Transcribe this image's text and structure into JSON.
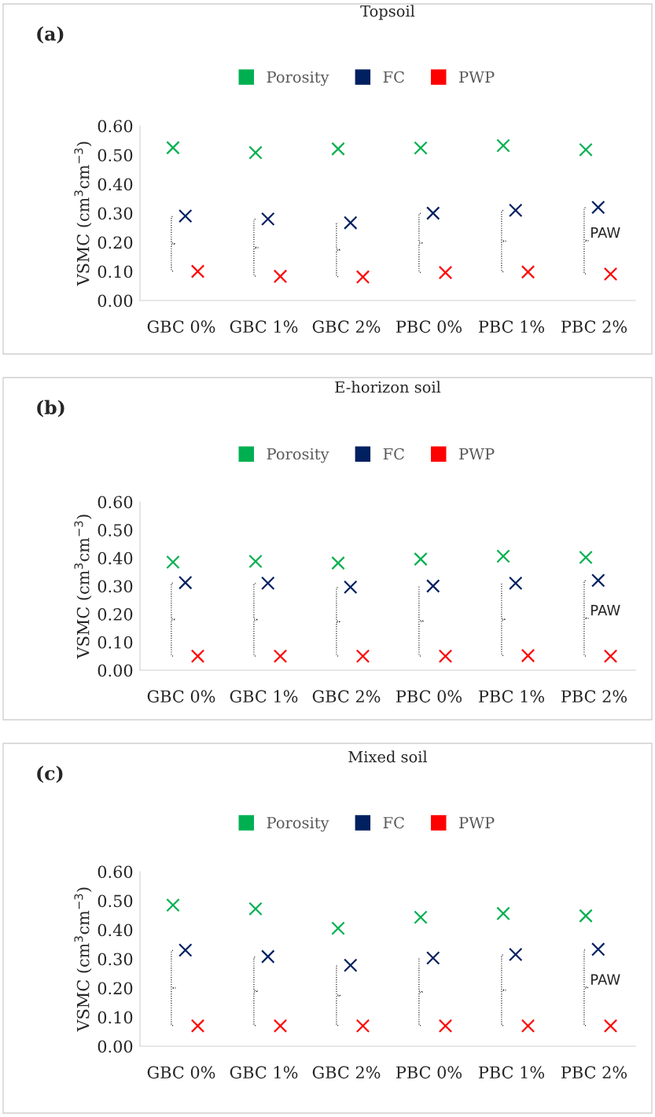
{
  "chart_data": [
    {
      "type": "scatter",
      "title": "Topsoil",
      "ylabel": "VSMC (cm$^{3}$cm$^{−3}$)",
      "categories": [
        "GBC 0%",
        "GBC 1%",
        "GBC 2%",
        "PBC 0%",
        "PBC 1%",
        "PBC 2%"
      ],
      "ylim": [
        0,
        0.6
      ],
      "yticks": [
        {
          "value": 0,
          "label": "0.00"
        },
        {
          "value": 0.1,
          "label": "0.10"
        },
        {
          "value": 0.2,
          "label": "0.20"
        },
        {
          "value": 0.3,
          "label": "0.30"
        },
        {
          "value": 0.4,
          "label": "0.40"
        },
        {
          "value": 0.5,
          "label": "0.50"
        },
        {
          "value": 0.6,
          "label": "0.60"
        }
      ],
      "marker": "cross",
      "legend": "top",
      "grid": false,
      "annotations": [
        "(a)",
        "PAW"
      ],
      "series": [
        {
          "name": "Porosity",
          "color": "#00b050",
          "values": [
            0.525,
            0.508,
            0.521,
            0.524,
            0.532,
            0.518
          ]
        },
        {
          "name": "FC",
          "color": "#002060",
          "values": [
            0.29,
            0.28,
            0.267,
            0.3,
            0.31,
            0.32
          ]
        },
        {
          "name": "PWP",
          "color": "#ff0000",
          "values": [
            0.1,
            0.083,
            0.081,
            0.096,
            0.098,
            0.091
          ]
        }
      ]
    },
    {
      "type": "scatter",
      "title": "E-horizon soil",
      "ylabel": "VSMC (cm$^{3}$cm$^{−3}$)",
      "categories": [
        "GBC 0%",
        "GBC 1%",
        "GBC 2%",
        "PBC 0%",
        "PBC 1%",
        "PBC 2%"
      ],
      "ylim": [
        0,
        0.6
      ],
      "yticks": [
        {
          "value": 0,
          "label": "0.00"
        },
        {
          "value": 0.1,
          "label": "0.10"
        },
        {
          "value": 0.2,
          "label": "0.20"
        },
        {
          "value": 0.3,
          "label": "0.30"
        },
        {
          "value": 0.4,
          "label": "0.40"
        },
        {
          "value": 0.5,
          "label": "0.50"
        },
        {
          "value": 0.6,
          "label": "0.60"
        }
      ],
      "marker": "cross",
      "legend": "top",
      "grid": false,
      "annotations": [
        "(b)",
        "PAW"
      ],
      "series": [
        {
          "name": "Porosity",
          "color": "#00b050",
          "values": [
            0.385,
            0.388,
            0.382,
            0.396,
            0.406,
            0.402
          ]
        },
        {
          "name": "FC",
          "color": "#002060",
          "values": [
            0.312,
            0.31,
            0.296,
            0.3,
            0.31,
            0.32
          ]
        },
        {
          "name": "PWP",
          "color": "#ff0000",
          "values": [
            0.05,
            0.05,
            0.05,
            0.05,
            0.052,
            0.05
          ]
        }
      ]
    },
    {
      "type": "scatter",
      "title": "Mixed soil",
      "ylabel": "VSMC (cm$^{3}$cm$^{−3}$)",
      "categories": [
        "GBC 0%",
        "GBC 1%",
        "GBC 2%",
        "PBC 0%",
        "PBC 1%",
        "PBC 2%"
      ],
      "ylim": [
        0,
        0.6
      ],
      "yticks": [
        {
          "value": 0,
          "label": "0.00"
        },
        {
          "value": 0.1,
          "label": "0.10"
        },
        {
          "value": 0.2,
          "label": "0.20"
        },
        {
          "value": 0.3,
          "label": "0.30"
        },
        {
          "value": 0.4,
          "label": "0.40"
        },
        {
          "value": 0.5,
          "label": "0.50"
        },
        {
          "value": 0.6,
          "label": "0.60"
        }
      ],
      "marker": "cross",
      "legend": "top",
      "grid": false,
      "annotations": [
        "(c)",
        "PAW"
      ],
      "series": [
        {
          "name": "Porosity",
          "color": "#00b050",
          "values": [
            0.485,
            0.472,
            0.405,
            0.443,
            0.456,
            0.448
          ]
        },
        {
          "name": "FC",
          "color": "#002060",
          "values": [
            0.33,
            0.308,
            0.278,
            0.303,
            0.315,
            0.333
          ]
        },
        {
          "name": "PWP",
          "color": "#ff0000",
          "values": [
            0.07,
            0.07,
            0.07,
            0.07,
            0.07,
            0.07
          ]
        }
      ]
    }
  ]
}
